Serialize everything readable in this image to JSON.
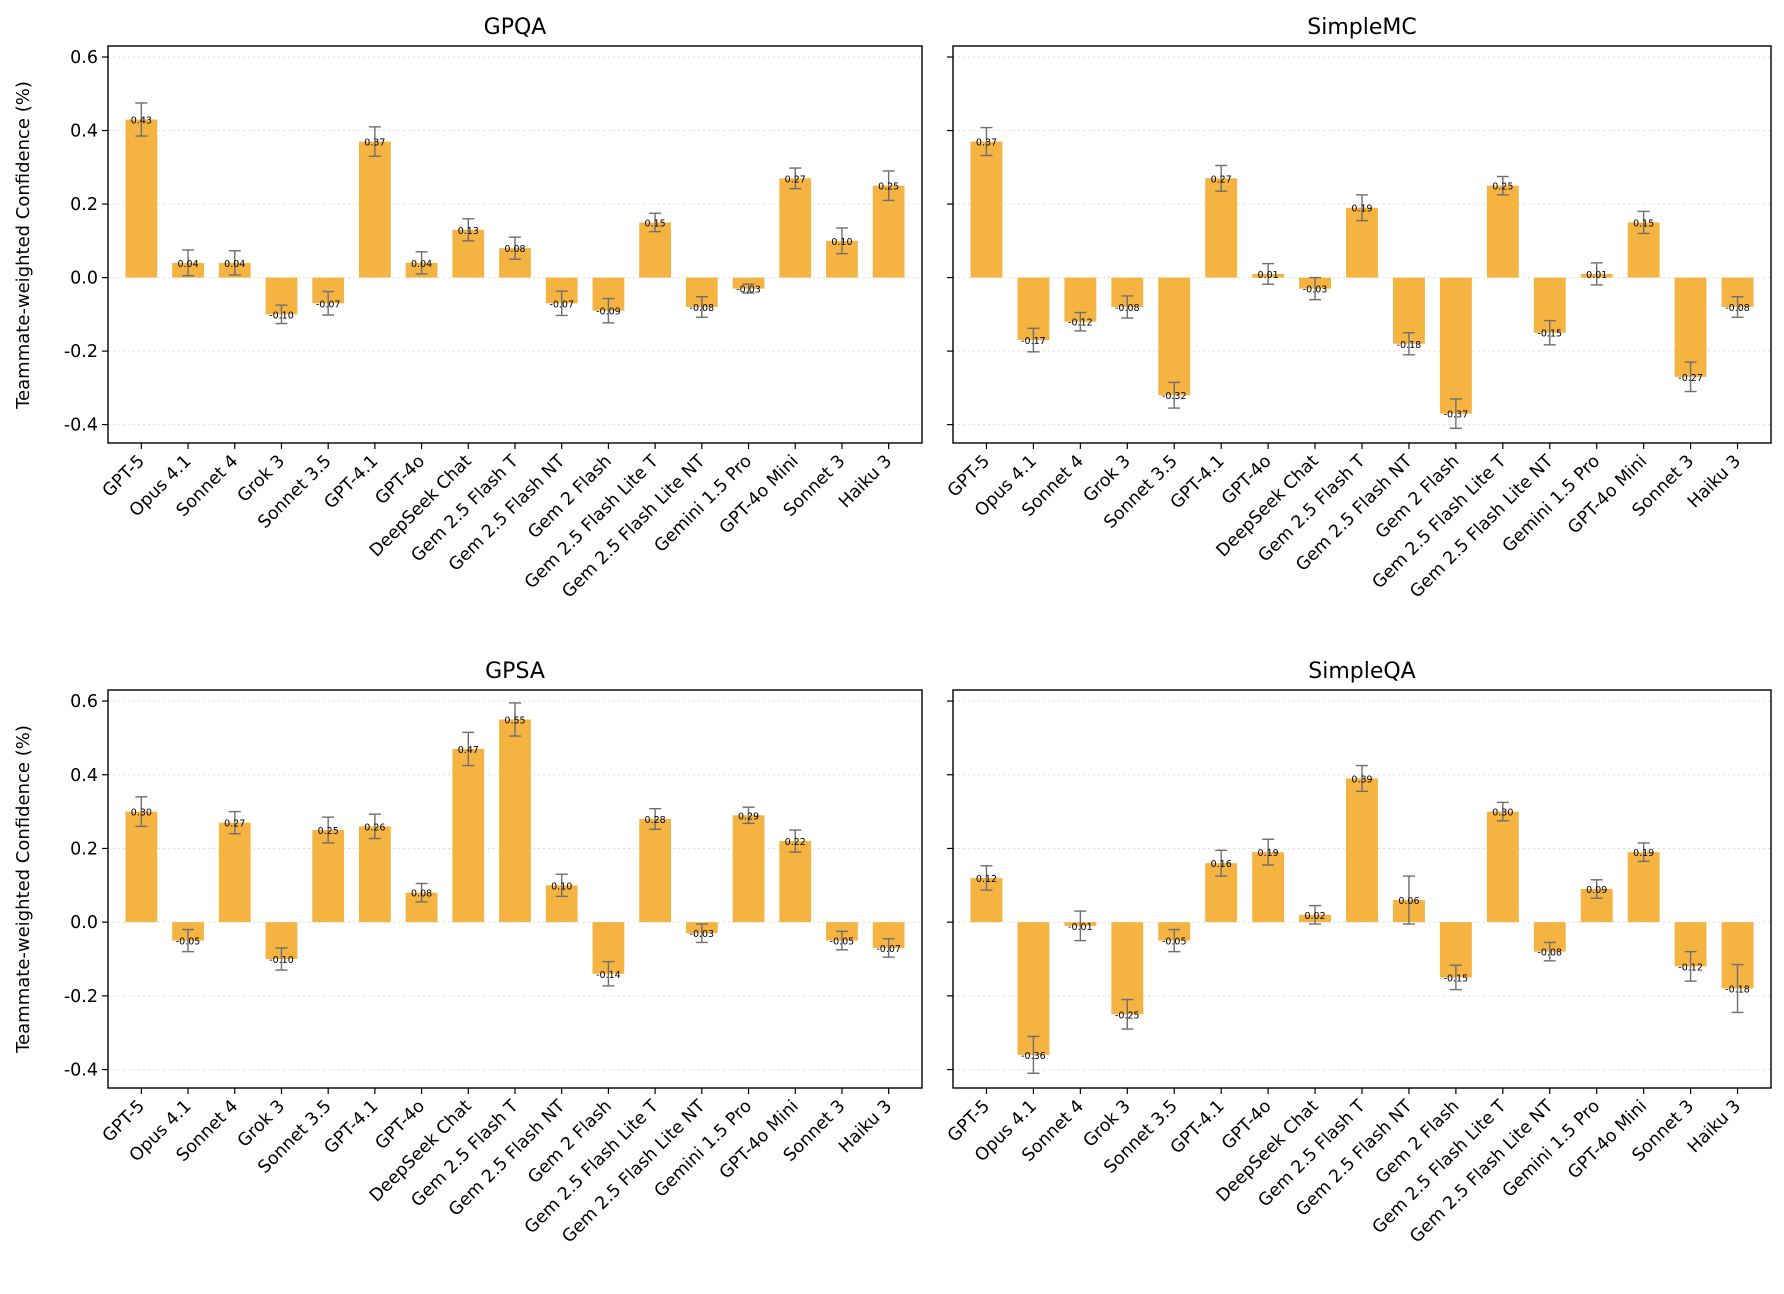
{
  "figure": {
    "ylabel": "Teammate-weighted Confidence (%)",
    "colors": {
      "bar": "#f5b342",
      "errorbar": "#6e6e6e",
      "grid": "#dddddd",
      "axis": "#000000"
    }
  },
  "chart_data": [
    {
      "type": "bar",
      "title": "GPQA",
      "xlabel": "",
      "ylabel": "Teammate-weighted Confidence (%)",
      "ylim": [
        -0.45,
        0.63
      ],
      "yticks": [
        "0.6",
        "0.4",
        "0.2",
        "0.0",
        "-0.2",
        "-0.4"
      ],
      "categories": [
        "GPT-5",
        "Opus 4.1",
        "Sonnet 4",
        "Grok 3",
        "Sonnet 3.5",
        "GPT-4.1",
        "GPT-4o",
        "DeepSeek Chat",
        "Gem 2.5 Flash T",
        "Gem 2.5 Flash NT",
        "Gem 2 Flash",
        "Gem 2.5 Flash Lite T",
        "Gem 2.5 Flash Lite NT",
        "Gemini 1.5 Pro",
        "GPT-4o Mini",
        "Sonnet 3",
        "Haiku 3"
      ],
      "values": [
        0.43,
        0.04,
        0.04,
        -0.1,
        -0.07,
        0.37,
        0.04,
        0.13,
        0.08,
        -0.07,
        -0.09,
        0.15,
        -0.08,
        -0.03,
        0.27,
        0.1,
        0.25
      ],
      "value_labels": [
        "0.43",
        "0.04",
        "0.04",
        "-0.10",
        "-0.07",
        "0.37",
        "0.04",
        "0.13",
        "0.08",
        "-0.07",
        "-0.09",
        "0.15",
        "-0.08",
        "-0.03",
        "0.27",
        "0.10",
        "0.25"
      ],
      "errors": [
        0.045,
        0.035,
        0.033,
        0.025,
        0.032,
        0.04,
        0.03,
        0.03,
        0.03,
        0.033,
        0.033,
        0.025,
        0.028,
        0.012,
        0.028,
        0.035,
        0.04
      ],
      "grid": true
    },
    {
      "type": "bar",
      "title": "SimpleMC",
      "xlabel": "",
      "ylabel": "",
      "ylim": [
        -0.45,
        0.63
      ],
      "yticks": [
        "0.6",
        "0.4",
        "0.2",
        "0.0",
        "-0.2",
        "-0.4"
      ],
      "categories": [
        "GPT-5",
        "Opus 4.1",
        "Sonnet 4",
        "Grok 3",
        "Sonnet 3.5",
        "GPT-4.1",
        "GPT-4o",
        "DeepSeek Chat",
        "Gem 2.5 Flash T",
        "Gem 2.5 Flash NT",
        "Gem 2 Flash",
        "Gem 2.5 Flash Lite T",
        "Gem 2.5 Flash Lite NT",
        "Gemini 1.5 Pro",
        "GPT-4o Mini",
        "Sonnet 3",
        "Haiku 3"
      ],
      "values": [
        0.37,
        -0.17,
        -0.12,
        -0.08,
        -0.32,
        0.27,
        0.01,
        -0.03,
        0.19,
        -0.18,
        -0.37,
        0.25,
        -0.15,
        0.01,
        0.15,
        -0.27,
        -0.08
      ],
      "value_labels": [
        "0.37",
        "-0.17",
        "-0.12",
        "-0.08",
        "-0.32",
        "0.27",
        "0.01",
        "-0.03",
        "0.19",
        "-0.18",
        "-0.37",
        "0.25",
        "-0.15",
        "0.01",
        "0.15",
        "-0.27",
        "-0.08"
      ],
      "errors": [
        0.038,
        0.032,
        0.025,
        0.03,
        0.035,
        0.035,
        0.028,
        0.03,
        0.035,
        0.03,
        0.04,
        0.025,
        0.033,
        0.03,
        0.03,
        0.04,
        0.028
      ],
      "grid": true
    },
    {
      "type": "bar",
      "title": "GPSA",
      "xlabel": "",
      "ylabel": "Teammate-weighted Confidence (%)",
      "ylim": [
        -0.45,
        0.63
      ],
      "yticks": [
        "0.6",
        "0.4",
        "0.2",
        "0.0",
        "-0.2",
        "-0.4"
      ],
      "categories": [
        "GPT-5",
        "Opus 4.1",
        "Sonnet 4",
        "Grok 3",
        "Sonnet 3.5",
        "GPT-4.1",
        "GPT-4o",
        "DeepSeek Chat",
        "Gem 2.5 Flash T",
        "Gem 2.5 Flash NT",
        "Gem 2 Flash",
        "Gem 2.5 Flash Lite T",
        "Gem 2.5 Flash Lite NT",
        "Gemini 1.5 Pro",
        "GPT-4o Mini",
        "Sonnet 3",
        "Haiku 3"
      ],
      "values": [
        0.3,
        -0.05,
        0.27,
        -0.1,
        0.25,
        0.26,
        0.08,
        0.47,
        0.55,
        0.1,
        -0.14,
        0.28,
        -0.03,
        0.29,
        0.22,
        -0.05,
        -0.07
      ],
      "value_labels": [
        "0.30",
        "-0.05",
        "0.27",
        "-0.10",
        "0.25",
        "0.26",
        "0.08",
        "0.47",
        "0.55",
        "0.10",
        "-0.14",
        "0.28",
        "-0.03",
        "0.29",
        "0.22",
        "-0.05",
        "-0.07"
      ],
      "errors": [
        0.04,
        0.03,
        0.03,
        0.03,
        0.035,
        0.033,
        0.025,
        0.045,
        0.045,
        0.03,
        0.033,
        0.028,
        0.025,
        0.022,
        0.03,
        0.025,
        0.025
      ],
      "grid": true
    },
    {
      "type": "bar",
      "title": "SimpleQA",
      "xlabel": "",
      "ylabel": "",
      "ylim": [
        -0.45,
        0.63
      ],
      "yticks": [
        "0.6",
        "0.4",
        "0.2",
        "0.0",
        "-0.2",
        "-0.4"
      ],
      "categories": [
        "GPT-5",
        "Opus 4.1",
        "Sonnet 4",
        "Grok 3",
        "Sonnet 3.5",
        "GPT-4.1",
        "GPT-4o",
        "DeepSeek Chat",
        "Gem 2.5 Flash T",
        "Gem 2.5 Flash NT",
        "Gem 2 Flash",
        "Gem 2.5 Flash Lite T",
        "Gem 2.5 Flash Lite NT",
        "Gemini 1.5 Pro",
        "GPT-4o Mini",
        "Sonnet 3",
        "Haiku 3"
      ],
      "values": [
        0.12,
        -0.36,
        -0.01,
        -0.25,
        -0.05,
        0.16,
        0.19,
        0.02,
        0.39,
        0.06,
        -0.15,
        0.3,
        -0.08,
        0.09,
        0.19,
        -0.12,
        -0.18
      ],
      "value_labels": [
        "0.12",
        "-0.36",
        "-0.01",
        "-0.25",
        "-0.05",
        "0.16",
        "0.19",
        "0.02",
        "0.39",
        "0.06",
        "-0.15",
        "0.30",
        "-0.08",
        "0.09",
        "0.19",
        "-0.12",
        "-0.18"
      ],
      "errors": [
        0.033,
        0.05,
        0.04,
        0.04,
        0.03,
        0.035,
        0.035,
        0.025,
        0.035,
        0.065,
        0.033,
        0.025,
        0.025,
        0.025,
        0.025,
        0.04,
        0.065
      ],
      "grid": true
    }
  ]
}
